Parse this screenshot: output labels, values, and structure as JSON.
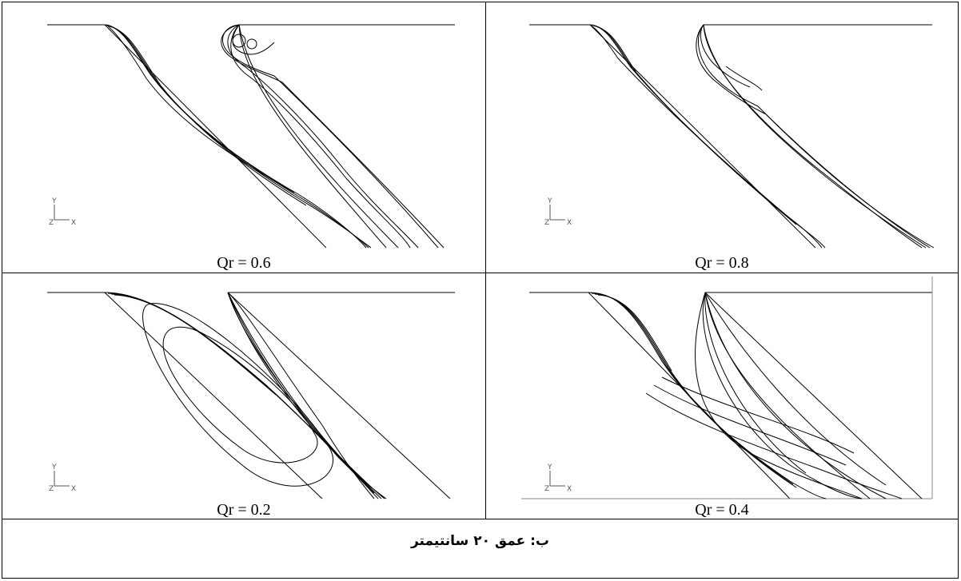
{
  "panels": [
    {
      "label": "Qr = 0.6"
    },
    {
      "label": "Qr = 0.8"
    },
    {
      "label": "Qr = 0.2"
    },
    {
      "label": "Qr = 0.4"
    }
  ],
  "axis": {
    "y": "Y",
    "z": "Z",
    "x": "X"
  },
  "caption": "ب: عمق ۲۰ سانتیمتر"
}
